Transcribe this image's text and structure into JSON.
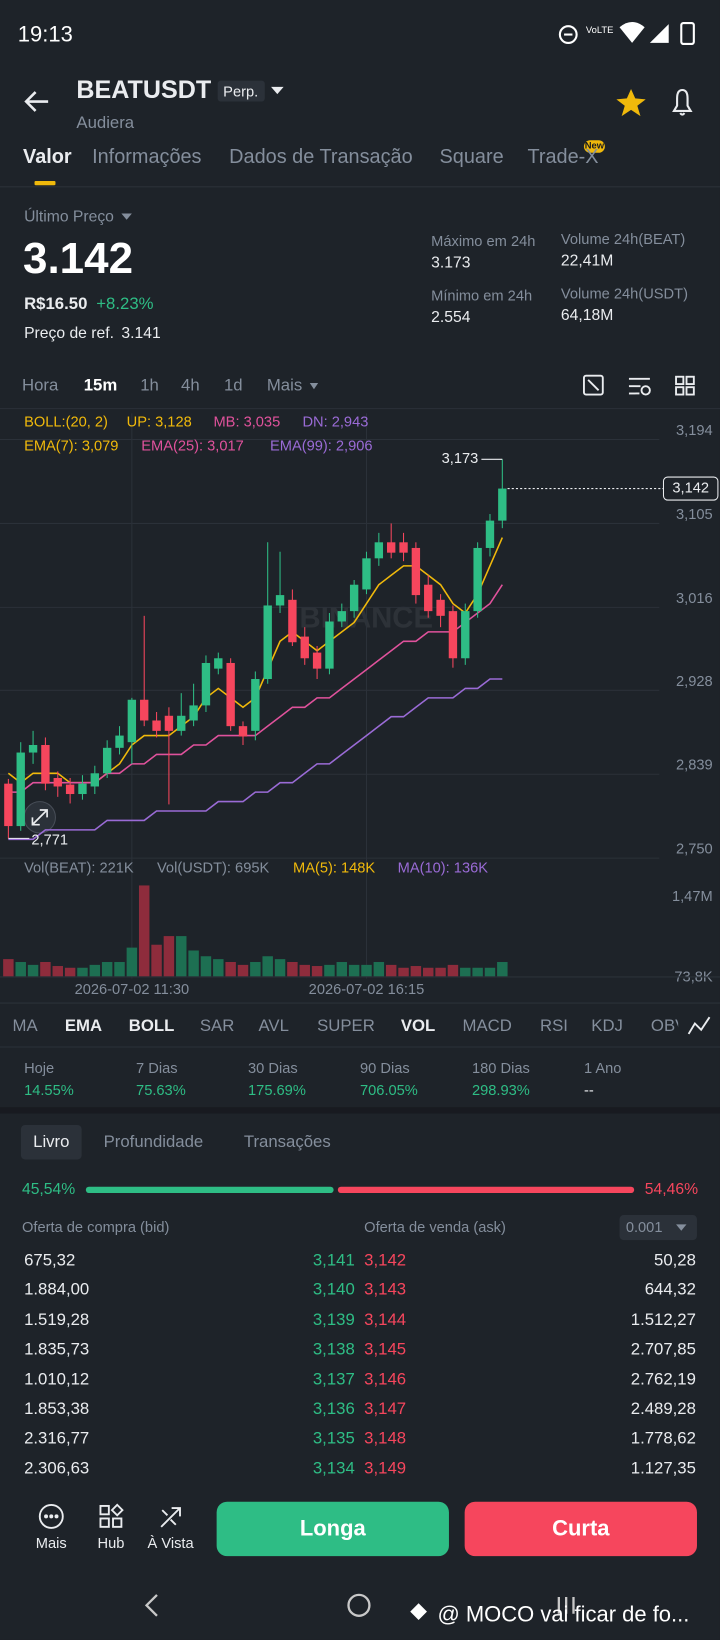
{
  "status_bar": {
    "time": "19:13"
  },
  "header": {
    "symbol": "BEATUSDT",
    "badge": "Perp.",
    "subtitle": "Audiera"
  },
  "tabs": {
    "items": [
      "Valor",
      "Informações",
      "Dados de Transação",
      "Square",
      "Trade-X"
    ],
    "new_badge": "New"
  },
  "price": {
    "last_label": "Último Preço",
    "last": "3.142",
    "fiat": "R$16.50",
    "change": "+8.23%",
    "ref_label": "Preço de ref.",
    "ref": "3.141",
    "stats": [
      {
        "label": "Máximo em 24h",
        "value": "3.173"
      },
      {
        "label": "Volume 24h(BEAT)",
        "value": "22,41M"
      },
      {
        "label": "Mínimo em 24h",
        "value": "2.554"
      },
      {
        "label": "Volume 24h(USDT)",
        "value": "64,18M"
      }
    ]
  },
  "intervals": [
    "Hora",
    "15m",
    "1h",
    "4h",
    "1d",
    "Mais"
  ],
  "chart_data": [
    {
      "type": "candlestick",
      "watermark": "BINANCE",
      "up_color": "#2ebd85",
      "down_color": "#f6465d",
      "grid": true,
      "ylim": [
        2.75,
        3.194
      ],
      "yticks": [
        {
          "value": 3.194,
          "label": "3,194"
        },
        {
          "value": 3.105,
          "label": "3,105"
        },
        {
          "value": 3.016,
          "label": "3,016"
        },
        {
          "value": 2.928,
          "label": "2,928"
        },
        {
          "value": 2.839,
          "label": "2,839"
        },
        {
          "value": 2.75,
          "label": "2,750"
        }
      ],
      "legend_texts": [
        {
          "text": "BOLL:(20, 2)",
          "color": "#f0b90b"
        },
        {
          "text": "UP: 3,128",
          "color": "#f0b90b"
        },
        {
          "text": "MB: 3,035",
          "color": "#e0529c"
        },
        {
          "text": "DN: 2,943",
          "color": "#9a6bd6"
        }
      ],
      "open": [
        2.829,
        2.784,
        2.862,
        2.87,
        2.835,
        2.828,
        2.818,
        2.826,
        2.84,
        2.867,
        2.873,
        2.918,
        2.896,
        2.901,
        2.885,
        2.896,
        2.912,
        2.951,
        2.957,
        2.89,
        2.885,
        2.94,
        3.018,
        3.024,
        2.985,
        2.968,
        2.951,
        3.001,
        3.012,
        3.035,
        3.068,
        3.085,
        3.085,
        3.079,
        3.04,
        3.024,
        3.012,
        2.962,
        3.012,
        3.079,
        3.108
      ],
      "high": [
        2.834,
        2.873,
        2.885,
        2.878,
        2.842,
        2.835,
        2.838,
        2.848,
        2.875,
        2.89,
        2.92,
        3.007,
        2.905,
        2.91,
        2.925,
        2.935,
        2.965,
        2.968,
        2.962,
        2.895,
        2.948,
        3.085,
        3.075,
        3.035,
        2.995,
        2.975,
        3.01,
        3.02,
        3.045,
        3.075,
        3.095,
        3.105,
        3.095,
        3.085,
        3.05,
        3.03,
        3.018,
        3.02,
        3.085,
        3.115,
        3.173
      ],
      "low": [
        2.771,
        2.779,
        2.85,
        2.822,
        2.815,
        2.808,
        2.812,
        2.818,
        2.835,
        2.86,
        2.85,
        2.89,
        2.878,
        2.807,
        2.88,
        2.89,
        2.905,
        2.945,
        2.885,
        2.87,
        2.875,
        2.935,
        3.01,
        2.975,
        2.955,
        2.94,
        2.945,
        2.995,
        3.005,
        3.03,
        3.06,
        3.068,
        3.065,
        3.02,
        3.005,
        2.995,
        2.952,
        2.955,
        3.005,
        3.07,
        3.1
      ],
      "close": [
        2.784,
        2.862,
        2.87,
        2.829,
        2.826,
        2.818,
        2.829,
        2.84,
        2.867,
        2.88,
        2.918,
        2.896,
        2.885,
        2.885,
        2.901,
        2.912,
        2.957,
        2.962,
        2.89,
        2.879,
        2.94,
        3.018,
        3.029,
        2.979,
        2.962,
        2.951,
        3.001,
        3.012,
        3.04,
        3.068,
        3.085,
        3.074,
        3.074,
        3.029,
        3.012,
        3.007,
        2.962,
        3.012,
        3.079,
        3.108,
        3.142
      ],
      "lines": [
        {
          "name": "EMA(7): 3,079",
          "color": "#f0b90b",
          "values": [
            2.84,
            2.83,
            2.84,
            2.84,
            2.84,
            2.83,
            2.83,
            2.83,
            2.84,
            2.85,
            2.87,
            2.88,
            2.88,
            2.88,
            2.89,
            2.9,
            2.92,
            2.93,
            2.92,
            2.91,
            2.92,
            2.95,
            2.98,
            2.99,
            2.98,
            2.97,
            2.98,
            2.99,
            3.0,
            3.02,
            3.04,
            3.05,
            3.06,
            3.06,
            3.05,
            3.04,
            3.02,
            3.01,
            3.03,
            3.06,
            3.09
          ]
        },
        {
          "name": "EMA(25): 3,017",
          "color": "#e0529c",
          "values": [
            2.82,
            2.82,
            2.83,
            2.83,
            2.83,
            2.83,
            2.83,
            2.83,
            2.84,
            2.84,
            2.85,
            2.85,
            2.86,
            2.86,
            2.86,
            2.87,
            2.87,
            2.88,
            2.88,
            2.88,
            2.88,
            2.89,
            2.9,
            2.91,
            2.91,
            2.92,
            2.92,
            2.93,
            2.94,
            2.95,
            2.96,
            2.97,
            2.98,
            2.98,
            2.99,
            2.99,
            2.99,
            3.0,
            3.01,
            3.02,
            3.04
          ]
        },
        {
          "name": "EMA(99): 2,906",
          "color": "#9a6bd6",
          "values": [
            2.77,
            2.77,
            2.77,
            2.78,
            2.78,
            2.78,
            2.78,
            2.78,
            2.79,
            2.79,
            2.79,
            2.79,
            2.8,
            2.8,
            2.8,
            2.8,
            2.8,
            2.81,
            2.81,
            2.81,
            2.82,
            2.82,
            2.83,
            2.83,
            2.84,
            2.85,
            2.85,
            2.86,
            2.87,
            2.88,
            2.89,
            2.9,
            2.9,
            2.91,
            2.92,
            2.92,
            2.92,
            2.93,
            2.93,
            2.94,
            2.94
          ]
        }
      ],
      "high_label": {
        "value": 3.173,
        "label": "3,173"
      },
      "low_label": {
        "value": 2.771,
        "label": "2,771"
      },
      "last_price": {
        "value": 3.142,
        "label": "3,142"
      }
    },
    {
      "type": "bar",
      "up_color": "#1d6f52",
      "down_color": "#8e2c3c",
      "grid": false,
      "legend_texts": [
        {
          "text": "Vol(BEAT): 221K",
          "color": "#848e9c"
        },
        {
          "text": "Vol(USDT): 695K",
          "color": "#848e9c"
        },
        {
          "text": "MA(5): 148K",
          "color": "#f0b90b"
        },
        {
          "text": "MA(10): 136K",
          "color": "#9a6bd6"
        }
      ],
      "categories": [
        null,
        null,
        null,
        null,
        null,
        null,
        null,
        null,
        null,
        null,
        "2026-07-02 11:30",
        null,
        null,
        null,
        null,
        null,
        null,
        null,
        null,
        null,
        null,
        null,
        null,
        null,
        null,
        null,
        null,
        null,
        null,
        "2026-07-02 16:15",
        null,
        null,
        null,
        null,
        null,
        null,
        null,
        null,
        null,
        null,
        null
      ],
      "values": [
        300000,
        250000,
        200000,
        250000,
        180000,
        150000,
        150000,
        200000,
        250000,
        250000,
        500000,
        1580000,
        550000,
        700000,
        700000,
        450000,
        350000,
        300000,
        250000,
        200000,
        250000,
        350000,
        300000,
        250000,
        200000,
        180000,
        200000,
        250000,
        200000,
        200000,
        250000,
        200000,
        150000,
        180000,
        150000,
        150000,
        200000,
        150000,
        150000,
        150000,
        250000
      ],
      "ylim": [
        0,
        1600000
      ],
      "yticks": [
        {
          "value": 1470000,
          "label": "1,47M"
        },
        {
          "value": 73800,
          "label": "73,8K"
        }
      ]
    }
  ],
  "indicator_tabs": [
    "MA",
    "EMA",
    "BOLL",
    "SAR",
    "AVL",
    "SUPER",
    "VOL",
    "MACD",
    "RSI",
    "KDJ",
    "OBV"
  ],
  "performance": [
    {
      "label": "Hoje",
      "value": "14.55%"
    },
    {
      "label": "7 Dias",
      "value": "75.63%"
    },
    {
      "label": "30 Dias",
      "value": "175.69%"
    },
    {
      "label": "90 Dias",
      "value": "706.05%"
    },
    {
      "label": "180 Dias",
      "value": "298.93%"
    },
    {
      "label": "1 Ano",
      "value": "--"
    }
  ],
  "book": {
    "tabs": [
      "Livro",
      "Profundidade",
      "Transações"
    ],
    "bid_share": {
      "value": 45.54,
      "label": "45,54%"
    },
    "ask_share": {
      "value": 54.46,
      "label": "54,46%"
    },
    "bid_header": "Oferta de compra (bid)",
    "ask_header": "Oferta de venda (ask)",
    "precision": "0.001",
    "rows": [
      [
        "675,32",
        "3,141",
        "3,142",
        "50,28"
      ],
      [
        "1.884,00",
        "3,140",
        "3,143",
        "644,32"
      ],
      [
        "1.519,28",
        "3,139",
        "3,144",
        "1.512,27"
      ],
      [
        "1.835,73",
        "3,138",
        "3,145",
        "2.707,85"
      ],
      [
        "1.010,12",
        "3,137",
        "3,146",
        "2.762,19"
      ],
      [
        "1.853,38",
        "3,136",
        "3,147",
        "2.489,28"
      ],
      [
        "2.316,77",
        "3,135",
        "3,148",
        "1.778,62"
      ],
      [
        "2.306,63",
        "3,134",
        "3,149",
        "1.127,35"
      ]
    ]
  },
  "bottom_bar": {
    "actions": [
      "Mais",
      "Hub",
      "À Vista"
    ],
    "long": "Longa",
    "short": "Curta"
  },
  "nav": {
    "overlay": "@ MOCO vai ficar de fo..."
  }
}
